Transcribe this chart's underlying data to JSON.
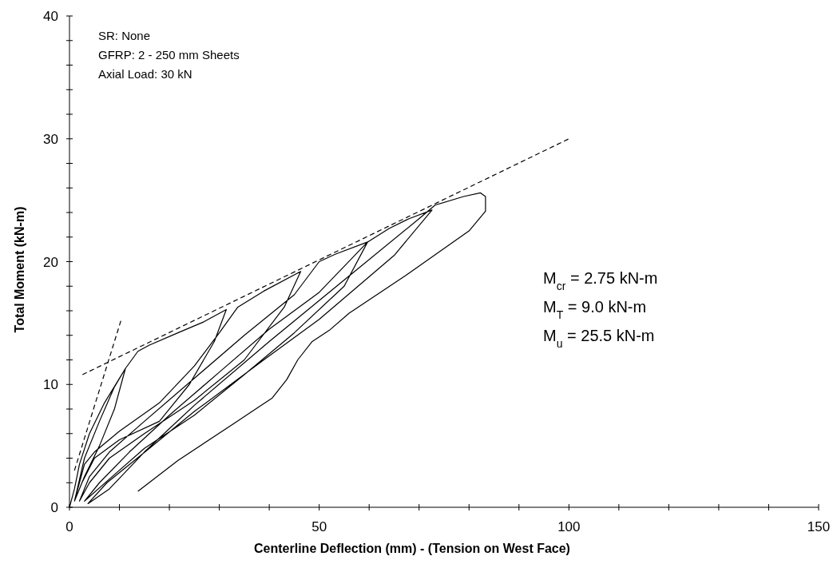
{
  "chart_data": {
    "type": "line",
    "xlabel": "Centerline Deflection (mm) - (Tension on West Face)",
    "ylabel": "Total Moment (kN-m)",
    "xlim": [
      0,
      150
    ],
    "ylim": [
      0,
      40
    ],
    "xticks": [
      0,
      {
        "value": 10,
        "label": null
      },
      {
        "value": 20,
        "label": null
      },
      {
        "value": 30,
        "label": null
      },
      {
        "value": 40,
        "label": null
      },
      50,
      {
        "value": 60,
        "label": null
      },
      {
        "value": 70,
        "label": null
      },
      {
        "value": 80,
        "label": null
      },
      {
        "value": 90,
        "label": null
      },
      100,
      {
        "value": 110,
        "label": null
      },
      {
        "value": 120,
        "label": null
      },
      {
        "value": 130,
        "label": null
      },
      {
        "value": 140,
        "label": null
      },
      150
    ],
    "yticks": [
      0,
      {
        "value": 2,
        "label": null
      },
      {
        "value": 4,
        "label": null
      },
      {
        "value": 6,
        "label": null
      },
      {
        "value": 8,
        "label": null
      },
      10,
      {
        "value": 12,
        "label": null
      },
      {
        "value": 14,
        "label": null
      },
      {
        "value": 16,
        "label": null
      },
      {
        "value": 18,
        "label": null
      },
      20,
      {
        "value": 22,
        "label": null
      },
      {
        "value": 24,
        "label": null
      },
      {
        "value": 26,
        "label": null
      },
      {
        "value": 28,
        "label": null
      },
      30,
      {
        "value": 32,
        "label": null
      },
      {
        "value": 34,
        "label": null
      },
      {
        "value": 36,
        "label": null
      },
      {
        "value": 38,
        "label": null
      },
      40
    ],
    "grid": false,
    "marker": "none",
    "series": [
      {
        "color": "#000000",
        "line_style": "solid",
        "x": [
          0,
          1,
          2,
          4,
          7,
          11.2,
          9,
          6,
          3,
          1,
          3,
          6,
          9,
          11.2,
          13.7,
          16,
          21.7,
          26.9,
          31.4,
          29,
          24,
          18,
          10,
          5,
          2.5,
          1,
          3,
          5,
          10,
          18,
          25,
          30,
          33.7,
          38.9,
          46.3,
          43,
          35,
          25,
          15,
          8,
          4,
          2,
          4,
          8,
          15,
          25,
          35,
          45,
          50,
          53.2,
          59.7,
          55,
          45,
          35,
          25,
          15,
          8,
          3,
          6,
          12,
          20,
          30,
          40,
          50,
          59.7,
          64,
          68,
          72.6,
          65,
          50,
          38.9,
          25,
          16,
          7.5,
          3.7,
          8,
          15,
          25,
          40,
          55,
          70,
          73.2,
          78.9,
          82.3,
          83.3,
          83.3,
          80,
          67.4,
          56,
          52,
          48.6,
          45.7,
          43.5,
          40.6,
          33.2,
          21.7,
          13.7
        ],
        "values": [
          0,
          1.5,
          3.5,
          6,
          8.5,
          11.3,
          8,
          5,
          2.5,
          0.5,
          4,
          7,
          9.8,
          11.3,
          12.7,
          13.2,
          14.2,
          15.1,
          16.1,
          13.5,
          10,
          7,
          5.5,
          4,
          2,
          0.5,
          3.5,
          4.5,
          6.2,
          8.5,
          11.5,
          14.2,
          16.3,
          17.6,
          19.2,
          16.3,
          12,
          8.7,
          6,
          4,
          2,
          0.5,
          2.5,
          4.5,
          7,
          10.5,
          14,
          17.3,
          20,
          20.6,
          21.6,
          18,
          14.2,
          10.8,
          7.5,
          4.8,
          2.3,
          0.5,
          2,
          4.5,
          7.5,
          11,
          14.5,
          17.5,
          21.6,
          22.7,
          23.5,
          24.2,
          20.5,
          15.3,
          12,
          7.8,
          4.8,
          2,
          0.3,
          1.5,
          4.5,
          8.3,
          13.5,
          18.5,
          23.5,
          24.6,
          25.3,
          25.6,
          25.3,
          24.1,
          22.5,
          18.9,
          15.8,
          14.4,
          13.5,
          12,
          10.4,
          8.9,
          6.9,
          3.8,
          1.3
        ]
      },
      {
        "color": "#000000",
        "line_style": "dashed",
        "x": [
          2.6,
          100
        ],
        "values": [
          10.8,
          30
        ]
      },
      {
        "color": "#000000",
        "line_style": "dashed",
        "x": [
          1,
          10.3
        ],
        "values": [
          3,
          15.2
        ]
      }
    ],
    "annotations": [
      "SR: None",
      "GFRP: 2 - 250 mm Sheets",
      "Axial Load: 30 kN",
      "M$_{cr}$ = 2.75 kN-m",
      "M$_{T}$ = 9.0 kN-m",
      "M$_{u}$ = 25.5 kN-m"
    ]
  }
}
